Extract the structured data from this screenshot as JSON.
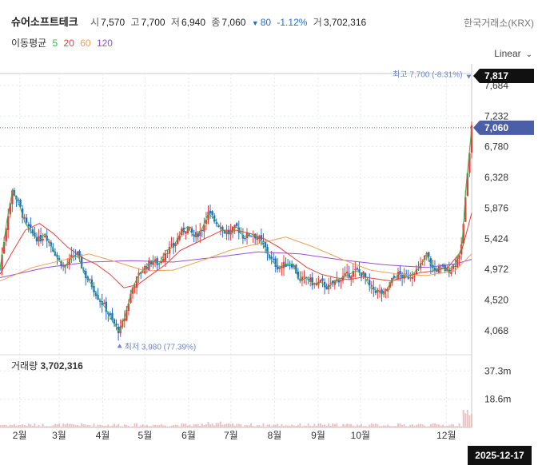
{
  "header": {
    "name": "슈어소프트테크",
    "open_label": "시",
    "open": "7,570",
    "high_label": "고",
    "high": "7,700",
    "low_label": "저",
    "low": "6,940",
    "close_label": "종",
    "close": "7,060",
    "change_arrow": "▼",
    "change": "80",
    "change_pct": "-1.12%",
    "volume_label": "거",
    "volume": "3,702,316",
    "exchange": "한국거래소(KRX)"
  },
  "ma_legend": {
    "label": "이동평균",
    "items": [
      {
        "period": "5",
        "color": "#3db54a"
      },
      {
        "period": "20",
        "color": "#e0413b"
      },
      {
        "period": "60",
        "color": "#f0a050"
      },
      {
        "period": "120",
        "color": "#9a4fd6"
      }
    ]
  },
  "scale_selector": "Linear",
  "colors": {
    "up": "#e0413b",
    "down": "#1d6fd6",
    "grid": "#e6e6e6",
    "volume": "#e8c4c4"
  },
  "chart_data": {
    "type": "candlestick",
    "y_ticks": [
      "4,068",
      "4,520",
      "4,972",
      "5,424",
      "5,876",
      "6,328",
      "6,780",
      "7,232",
      "7,684"
    ],
    "y_tick_values": [
      4068,
      4520,
      4972,
      5424,
      5876,
      6328,
      6780,
      7232,
      7684
    ],
    "ylim": [
      3760,
      7860
    ],
    "x_ticks": [
      "2월",
      "3월",
      "4월",
      "5월",
      "6월",
      "7월",
      "8월",
      "9월",
      "10월",
      "12월"
    ],
    "x_tick_days": [
      31,
      59,
      90,
      120,
      151,
      181,
      212,
      243,
      273,
      334
    ],
    "xlim": [
      17,
      352
    ],
    "price_labels": {
      "top": "7,817",
      "last": "7,060"
    },
    "annotations": {
      "high": "최고 7,700 (-8.31%)",
      "low": "최저 3,980 (77.39%)"
    },
    "high_point": {
      "day": 350,
      "value": 7700
    },
    "low_point": {
      "day": 102,
      "value": 3980
    },
    "close_path": [
      [
        17,
        4980
      ],
      [
        22,
        5700
      ],
      [
        26,
        6150
      ],
      [
        31,
        5900
      ],
      [
        35,
        5650
      ],
      [
        40,
        5500
      ],
      [
        45,
        5400
      ],
      [
        49,
        5500
      ],
      [
        54,
        5300
      ],
      [
        59,
        5100
      ],
      [
        63,
        5000
      ],
      [
        68,
        5150
      ],
      [
        72,
        5200
      ],
      [
        77,
        4900
      ],
      [
        82,
        4750
      ],
      [
        87,
        4550
      ],
      [
        92,
        4400
      ],
      [
        97,
        4200
      ],
      [
        102,
        4050
      ],
      [
        106,
        4300
      ],
      [
        111,
        4700
      ],
      [
        116,
        4900
      ],
      [
        120,
        5000
      ],
      [
        125,
        5100
      ],
      [
        130,
        5050
      ],
      [
        135,
        5250
      ],
      [
        140,
        5300
      ],
      [
        145,
        5500
      ],
      [
        150,
        5600
      ],
      [
        155,
        5450
      ],
      [
        160,
        5550
      ],
      [
        165,
        5800
      ],
      [
        170,
        5700
      ],
      [
        175,
        5550
      ],
      [
        180,
        5500
      ],
      [
        185,
        5600
      ],
      [
        190,
        5450
      ],
      [
        195,
        5500
      ],
      [
        200,
        5450
      ],
      [
        205,
        5300
      ],
      [
        210,
        5100
      ],
      [
        215,
        5000
      ],
      [
        220,
        5050
      ],
      [
        225,
        5050
      ],
      [
        230,
        4800
      ],
      [
        235,
        4850
      ],
      [
        240,
        4750
      ],
      [
        245,
        4780
      ],
      [
        250,
        4700
      ],
      [
        255,
        4800
      ],
      [
        260,
        4850
      ],
      [
        265,
        4900
      ],
      [
        270,
        4950
      ],
      [
        275,
        4900
      ],
      [
        280,
        4700
      ],
      [
        285,
        4650
      ],
      [
        290,
        4600
      ],
      [
        295,
        4800
      ],
      [
        300,
        4900
      ],
      [
        305,
        4850
      ],
      [
        310,
        4900
      ],
      [
        315,
        5000
      ],
      [
        320,
        5200
      ],
      [
        325,
        4950
      ],
      [
        330,
        5000
      ],
      [
        335,
        4950
      ],
      [
        340,
        5050
      ],
      [
        345,
        5300
      ],
      [
        348,
        6200
      ],
      [
        352,
        7060
      ]
    ],
    "ma20_path": [
      [
        17,
        4900
      ],
      [
        25,
        5200
      ],
      [
        35,
        5550
      ],
      [
        45,
        5650
      ],
      [
        55,
        5500
      ],
      [
        65,
        5300
      ],
      [
        75,
        5150
      ],
      [
        85,
        5050
      ],
      [
        95,
        4900
      ],
      [
        105,
        4700
      ],
      [
        115,
        4750
      ],
      [
        125,
        4900
      ],
      [
        135,
        5050
      ],
      [
        145,
        5250
      ],
      [
        155,
        5350
      ],
      [
        165,
        5450
      ],
      [
        175,
        5550
      ],
      [
        185,
        5550
      ],
      [
        195,
        5500
      ],
      [
        205,
        5420
      ],
      [
        215,
        5300
      ],
      [
        225,
        5150
      ],
      [
        235,
        5000
      ],
      [
        245,
        4900
      ],
      [
        255,
        4850
      ],
      [
        265,
        4820
      ],
      [
        275,
        4860
      ],
      [
        285,
        4830
      ],
      [
        295,
        4800
      ],
      [
        305,
        4860
      ],
      [
        315,
        4920
      ],
      [
        325,
        4950
      ],
      [
        335,
        5000
      ],
      [
        345,
        5250
      ],
      [
        352,
        5800
      ]
    ],
    "ma60_path": [
      [
        17,
        4800
      ],
      [
        40,
        5000
      ],
      [
        60,
        5100
      ],
      [
        80,
        5200
      ],
      [
        100,
        5080
      ],
      [
        120,
        4950
      ],
      [
        140,
        4960
      ],
      [
        160,
        5100
      ],
      [
        180,
        5250
      ],
      [
        200,
        5350
      ],
      [
        220,
        5450
      ],
      [
        240,
        5300
      ],
      [
        260,
        5120
      ],
      [
        280,
        4960
      ],
      [
        300,
        4900
      ],
      [
        320,
        4880
      ],
      [
        340,
        4950
      ],
      [
        352,
        5200
      ]
    ],
    "ma120_path": [
      [
        17,
        4850
      ],
      [
        50,
        5000
      ],
      [
        80,
        5080
      ],
      [
        110,
        5100
      ],
      [
        140,
        5080
      ],
      [
        170,
        5150
      ],
      [
        200,
        5230
      ],
      [
        230,
        5200
      ],
      [
        260,
        5110
      ],
      [
        290,
        5040
      ],
      [
        320,
        5000
      ],
      [
        340,
        5050
      ],
      [
        352,
        5120
      ]
    ],
    "volume": {
      "label": "거래량",
      "value": "3,702,316",
      "y_ticks": [
        "37.3m",
        "18.6m"
      ],
      "y_tick_values": [
        37.3,
        18.6
      ],
      "ylim": [
        0,
        48
      ]
    }
  },
  "cursor_date": "2025-12-17"
}
